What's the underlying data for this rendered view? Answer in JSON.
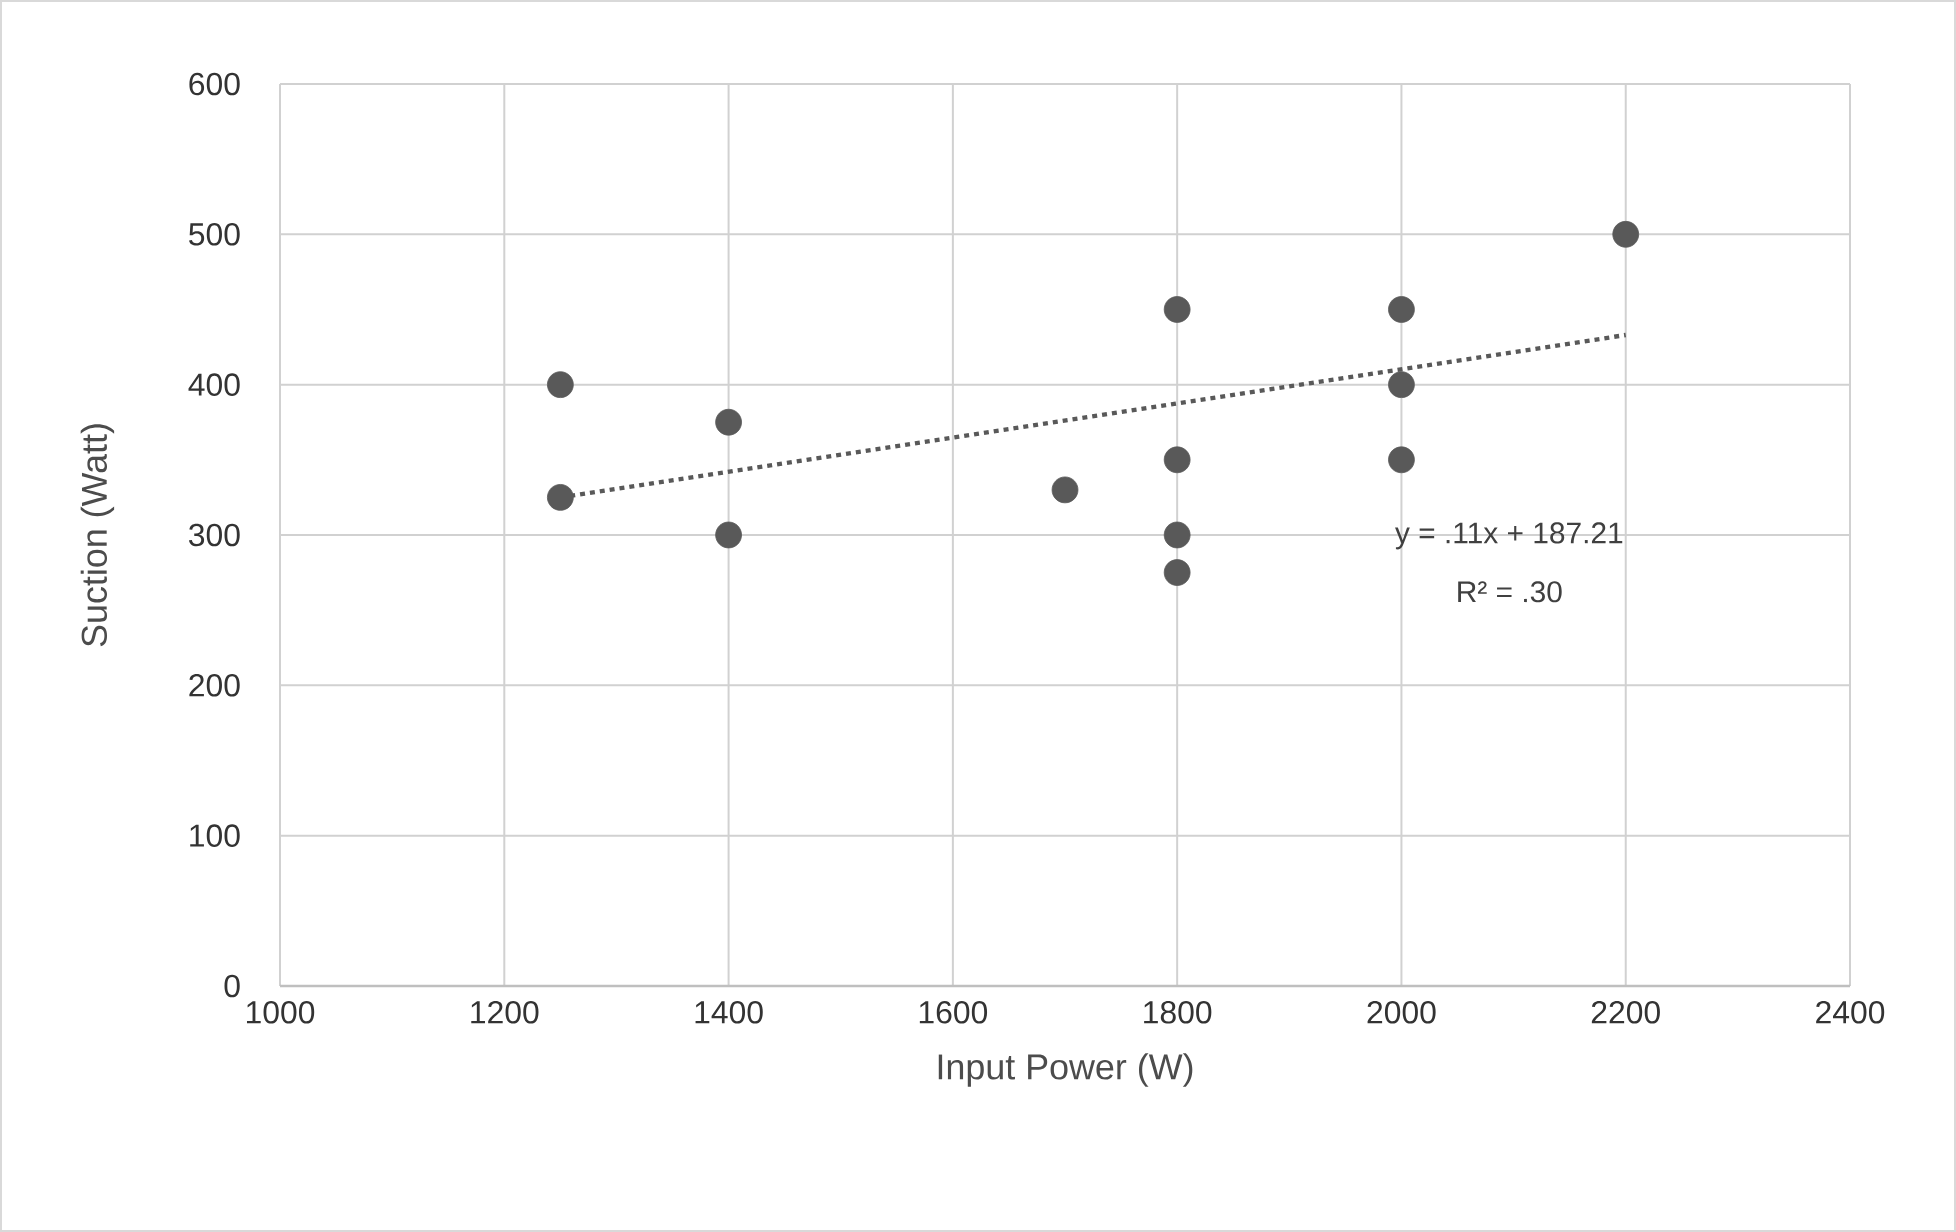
{
  "chart_data": {
    "type": "scatter",
    "xlabel": "Input Power (W)",
    "ylabel": "Suction (Watt)",
    "xlim": [
      1000,
      2400
    ],
    "xticks": [
      1000,
      1200,
      1400,
      1600,
      1800,
      2000,
      2200,
      2400
    ],
    "ylim": [
      0,
      600
    ],
    "yticks": [
      0,
      100,
      200,
      300,
      400,
      500,
      600
    ],
    "grid": true,
    "series": [
      {
        "type": "scatter",
        "marker": "circle",
        "color": "#595959",
        "x": [
          1250,
          1250,
          1400,
          1400,
          1700,
          1800,
          1800,
          1800,
          1800,
          2000,
          2000,
          2000,
          2200
        ],
        "values": [
          400,
          325,
          375,
          300,
          330,
          450,
          350,
          300,
          275,
          450,
          400,
          350,
          500
        ]
      },
      {
        "type": "line",
        "color": "#595959",
        "marker": "none",
        "line_style": "dotted",
        "x": [
          1250,
          2200
        ],
        "values": [
          325,
          433
        ]
      }
    ],
    "annotations": [
      "y = .11x + 187.21",
      "R² = .30"
    ]
  }
}
